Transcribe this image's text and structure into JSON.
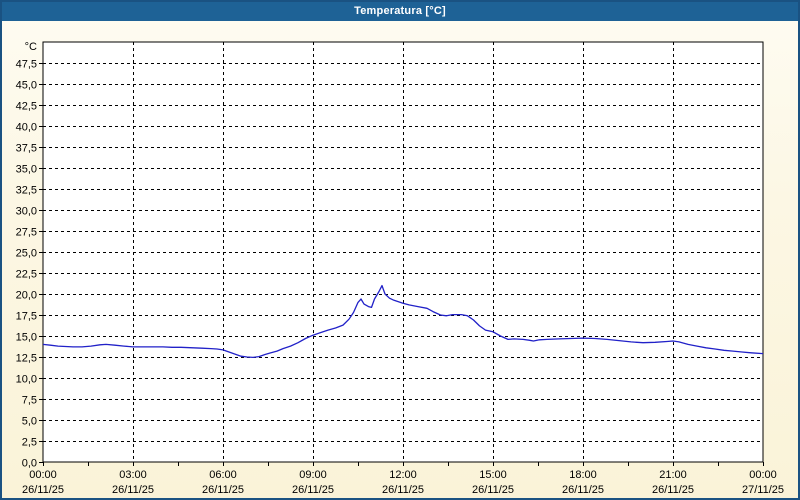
{
  "title": "Temperatura [°C]",
  "colors": {
    "titlebar": "#1e6296",
    "window_border": "#1a5282",
    "background_top": "#fefcf2",
    "background_bottom": "#faf3d8",
    "plot_background": "#ffffff",
    "grid": "#000000",
    "axis": "#000000",
    "text": "#000000",
    "line": "#2121c8"
  },
  "chart_data": {
    "type": "line",
    "title": "Temperatura [°C]",
    "y_unit_label": "°C",
    "ylim": [
      0,
      50
    ],
    "y_tick_step": 2.5,
    "decimal_separator": ",",
    "xlim_hours": [
      0,
      24
    ],
    "x_major_step_hours": 3,
    "x_minor_tick_hours": 1.5,
    "grid": "dashed",
    "x_ticks": [
      {
        "hours": 0,
        "time": "00:00",
        "date": "26/11/25"
      },
      {
        "hours": 3,
        "time": "03:00",
        "date": "26/11/25"
      },
      {
        "hours": 6,
        "time": "06:00",
        "date": "26/11/25"
      },
      {
        "hours": 9,
        "time": "09:00",
        "date": "26/11/25"
      },
      {
        "hours": 12,
        "time": "12:00",
        "date": "26/11/25"
      },
      {
        "hours": 15,
        "time": "15:00",
        "date": "26/11/25"
      },
      {
        "hours": 18,
        "time": "18:00",
        "date": "26/11/25"
      },
      {
        "hours": 21,
        "time": "21:00",
        "date": "26/11/25"
      },
      {
        "hours": 24,
        "time": "00:00",
        "date": "27/11/25"
      }
    ],
    "series": [
      {
        "name": "Temperatura",
        "color": "#2121c8",
        "points": [
          [
            0,
            14.0
          ],
          [
            0.25,
            13.9
          ],
          [
            0.5,
            13.8
          ],
          [
            0.75,
            13.75
          ],
          [
            1,
            13.7
          ],
          [
            1.3,
            13.7
          ],
          [
            1.6,
            13.8
          ],
          [
            1.9,
            13.95
          ],
          [
            2.1,
            14.0
          ],
          [
            2.4,
            13.9
          ],
          [
            2.7,
            13.8
          ],
          [
            3,
            13.7
          ],
          [
            3.3,
            13.7
          ],
          [
            3.6,
            13.7
          ],
          [
            4,
            13.7
          ],
          [
            4.3,
            13.65
          ],
          [
            4.6,
            13.65
          ],
          [
            5,
            13.6
          ],
          [
            5.3,
            13.55
          ],
          [
            5.6,
            13.5
          ],
          [
            5.8,
            13.45
          ],
          [
            6,
            13.35
          ],
          [
            6.2,
            13.1
          ],
          [
            6.4,
            12.85
          ],
          [
            6.6,
            12.6
          ],
          [
            6.8,
            12.5
          ],
          [
            7,
            12.45
          ],
          [
            7.2,
            12.55
          ],
          [
            7.4,
            12.8
          ],
          [
            7.6,
            13.0
          ],
          [
            7.8,
            13.2
          ],
          [
            8,
            13.5
          ],
          [
            8.25,
            13.8
          ],
          [
            8.5,
            14.2
          ],
          [
            8.75,
            14.7
          ],
          [
            9,
            15.1
          ],
          [
            9.25,
            15.4
          ],
          [
            9.5,
            15.7
          ],
          [
            9.75,
            15.95
          ],
          [
            10,
            16.3
          ],
          [
            10.2,
            17.0
          ],
          [
            10.35,
            17.8
          ],
          [
            10.5,
            19.0
          ],
          [
            10.6,
            19.4
          ],
          [
            10.7,
            18.8
          ],
          [
            10.85,
            18.5
          ],
          [
            10.95,
            18.4
          ],
          [
            11.05,
            19.4
          ],
          [
            11.2,
            20.3
          ],
          [
            11.3,
            21.0
          ],
          [
            11.4,
            20.0
          ],
          [
            11.55,
            19.5
          ],
          [
            11.7,
            19.25
          ],
          [
            12,
            18.9
          ],
          [
            12.2,
            18.7
          ],
          [
            12.5,
            18.5
          ],
          [
            12.8,
            18.3
          ],
          [
            13,
            17.9
          ],
          [
            13.25,
            17.5
          ],
          [
            13.45,
            17.4
          ],
          [
            13.65,
            17.55
          ],
          [
            13.95,
            17.55
          ],
          [
            14.15,
            17.4
          ],
          [
            14.35,
            16.9
          ],
          [
            14.55,
            16.2
          ],
          [
            14.75,
            15.7
          ],
          [
            15,
            15.5
          ],
          [
            15.25,
            15.0
          ],
          [
            15.5,
            14.6
          ],
          [
            15.7,
            14.65
          ],
          [
            16,
            14.6
          ],
          [
            16.2,
            14.5
          ],
          [
            16.35,
            14.4
          ],
          [
            16.55,
            14.55
          ],
          [
            16.8,
            14.6
          ],
          [
            17.2,
            14.65
          ],
          [
            17.6,
            14.7
          ],
          [
            18,
            14.75
          ],
          [
            18.4,
            14.7
          ],
          [
            18.8,
            14.6
          ],
          [
            19.2,
            14.45
          ],
          [
            19.6,
            14.3
          ],
          [
            20,
            14.2
          ],
          [
            20.4,
            14.25
          ],
          [
            20.8,
            14.35
          ],
          [
            21,
            14.4
          ],
          [
            21.2,
            14.3
          ],
          [
            21.5,
            14.0
          ],
          [
            21.8,
            13.8
          ],
          [
            22.1,
            13.6
          ],
          [
            22.4,
            13.45
          ],
          [
            22.7,
            13.3
          ],
          [
            23,
            13.2
          ],
          [
            23.3,
            13.1
          ],
          [
            23.6,
            13.0
          ],
          [
            24,
            12.9
          ]
        ]
      }
    ]
  }
}
